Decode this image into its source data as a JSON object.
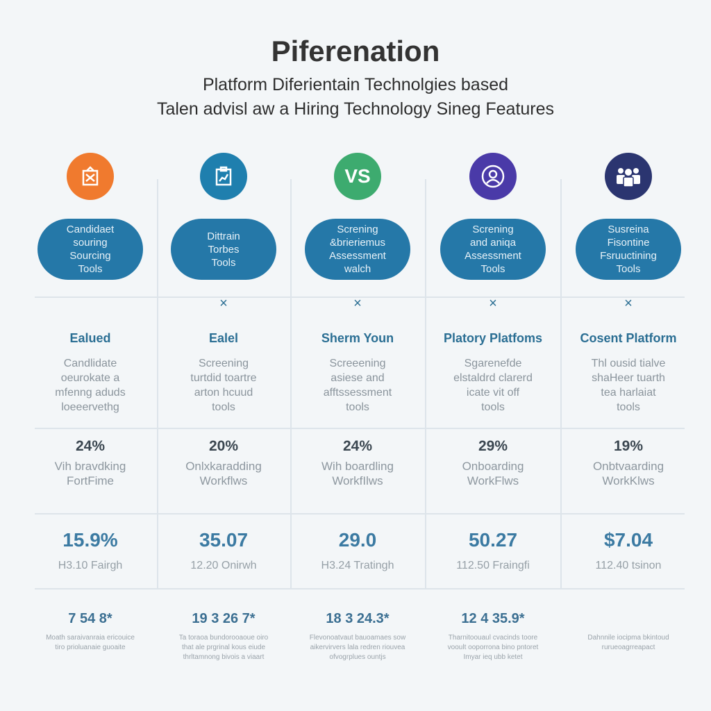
{
  "title": "Piferenation",
  "subtitle_line1": "Platform Diferientain Technolgies based",
  "subtitle_line2": "Talen advisl aw a Hiring Technology Sineg Features",
  "colors": {
    "pill": "#2578a8",
    "heading": "#2a6e93",
    "value": "#3b7aa2"
  },
  "columns": [
    {
      "icon": "shopping-bag-icon",
      "icon_color": "#f07a2e",
      "icon_text": "",
      "pill": [
        "Candidaet",
        "souring",
        "Sourcing",
        "Tools"
      ],
      "mark": "",
      "heading": "Ealued",
      "desc": [
        "Candlidate",
        "oeurokate a",
        "mfenng aduds",
        "loeeervethg"
      ],
      "pct": "24%",
      "pct_label": [
        "Vih bravdking",
        "FortFime"
      ],
      "value": "15.9%",
      "value_label": "H3.10 Fairgh",
      "foot": "7 54 8*",
      "foot_label": [
        "Moath saraivanraia ericouice",
        "tiro prioluanaie guoaite"
      ]
    },
    {
      "icon": "clipboard-chart-icon",
      "icon_color": "#1f7fae",
      "icon_text": "",
      "pill": [
        "Dittrain",
        "Torbes",
        "Tools"
      ],
      "mark": "×",
      "heading": "Ealel",
      "desc": [
        "Screening",
        "turtdid toartre",
        "arton hcuud",
        "tools"
      ],
      "pct": "20%",
      "pct_label": [
        "Onlxkaradding",
        "Workflws"
      ],
      "value": "35.07",
      "value_label": "12.20 Onirwh",
      "foot": "19 3 26 7*",
      "foot_label": [
        "Ta toraoa bundorooaoue oiro",
        "that ale prgrinal kous eiude",
        "thrltamnong bivois a viaart"
      ]
    },
    {
      "icon": "vs-icon",
      "icon_color": "#3dab6f",
      "icon_text": "VS",
      "pill": [
        "Screning",
        "&brieriemus",
        "Assessment",
        "walch"
      ],
      "mark": "×",
      "heading": "Sherm Youn",
      "desc": [
        "Screeening",
        "asiese and",
        "afftssessment",
        "tools"
      ],
      "pct": "24%",
      "pct_label": [
        "Wih boardling",
        "WorkfIlws"
      ],
      "value": "29.0",
      "value_label": "H3.24 Tratingh",
      "foot": "18 3 24.3*",
      "foot_label": [
        "Flevonoatvaut bauoamaes sow",
        "aikervirvers lala redren riouvea",
        "ofvogrplues ountjs"
      ]
    },
    {
      "icon": "user-profile-icon",
      "icon_color": "#4a3aa8",
      "icon_text": "",
      "pill": [
        "Screning",
        "and aniqa",
        "Assessment",
        "Tools"
      ],
      "mark": "×",
      "heading": "Platory Platfoms",
      "desc": [
        "Sgarenefde",
        "elstaldrd clarerd",
        "icate vit off",
        "tools"
      ],
      "pct": "29%",
      "pct_label": [
        "Onboarding",
        "WorkFlws"
      ],
      "value": "50.27",
      "value_label": "112.50 Fraingfi",
      "foot": "12 4 35.9*",
      "foot_label": [
        "Tharnitoouaul cvacinds toore",
        "vooult ooporrona bino pntoret",
        "Imyar ieq ubb ketet"
      ]
    },
    {
      "icon": "team-icon",
      "icon_color": "#2b3570",
      "icon_text": "",
      "pill": [
        "Susreina",
        "Fisontine",
        "Fsruuctining",
        "Tools"
      ],
      "mark": "×",
      "heading": "Cosent Platform",
      "desc": [
        "Thl ousid tialve",
        "shaHeer tuarth",
        "tea harlaiat",
        "tools"
      ],
      "pct": "19%",
      "pct_label": [
        "Onbtvaarding",
        "WorkKlws"
      ],
      "value": "$7.04",
      "value_label": "112.40 tsinon",
      "foot": "",
      "foot_label": [
        "Dahnnile iocipma bkintoud",
        "rurueoagrreapact"
      ]
    }
  ]
}
